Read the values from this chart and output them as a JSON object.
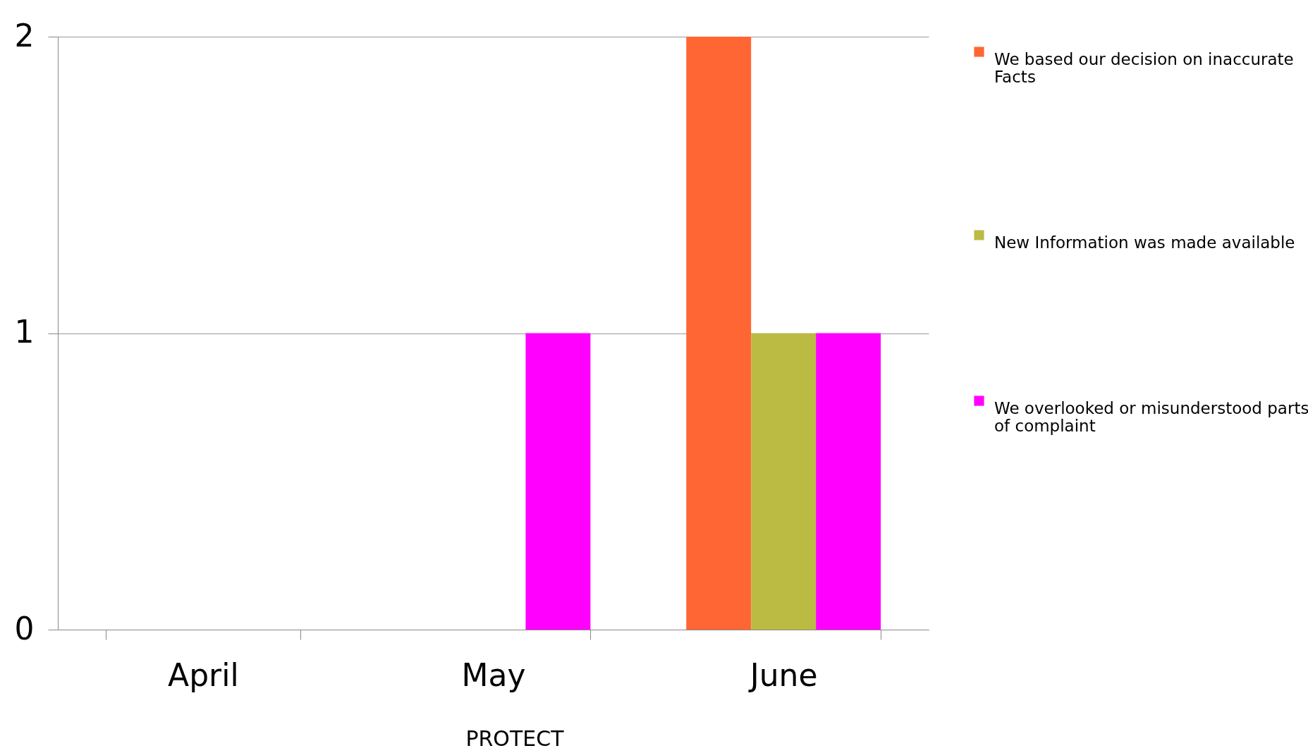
{
  "chart_data": {
    "type": "bar",
    "categories": [
      "April",
      "May",
      "June"
    ],
    "series": [
      {
        "name": "We based our decision on inaccurate Facts",
        "color": "#ff6633",
        "values": [
          0,
          0,
          2
        ]
      },
      {
        "name": "New Information was made available",
        "color": "#bbbb44",
        "values": [
          0,
          0,
          1
        ]
      },
      {
        "name": "We overlooked or misunderstood parts of complaint",
        "color": "#ff00ff",
        "values": [
          0,
          1,
          1
        ]
      }
    ],
    "ylim": [
      0,
      2
    ],
    "yticks": [
      0,
      1,
      2
    ],
    "grid": "y",
    "legend": "right",
    "annotations": [
      "PROTECT"
    ]
  }
}
